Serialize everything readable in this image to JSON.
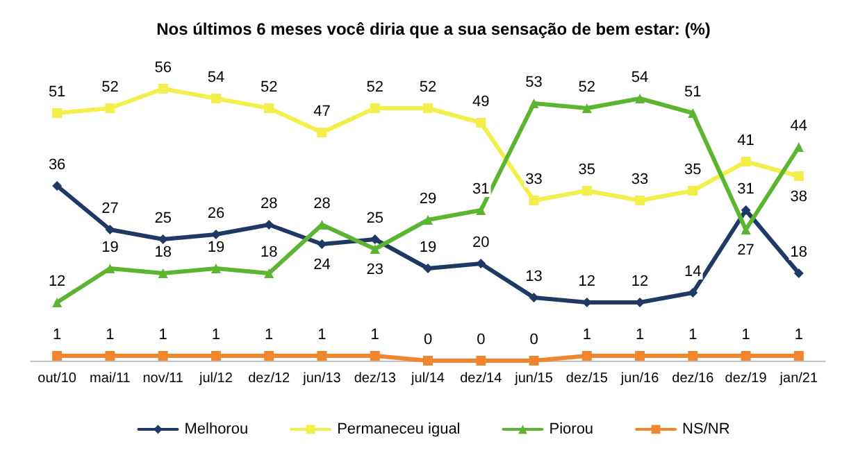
{
  "chart_data": {
    "type": "line",
    "title": "Nos últimos 6 meses você diria que a sua sensação de bem estar: (%)",
    "categories": [
      "out/10",
      "mai/11",
      "nov/11",
      "jul/12",
      "dez/12",
      "jun/13",
      "dez/13",
      "jul/14",
      "dez/14",
      "jun/15",
      "dez/15",
      "jun/16",
      "dez/16",
      "dez/19",
      "jan/21"
    ],
    "series": [
      {
        "name": "Melhorou",
        "color": "#1f3864",
        "marker": "diamond",
        "values": [
          36,
          27,
          25,
          26,
          28,
          24,
          25,
          19,
          20,
          13,
          12,
          12,
          14,
          31,
          18
        ]
      },
      {
        "name": "Permaneceu igual",
        "color": "#f2ef4b",
        "marker": "square",
        "values": [
          51,
          52,
          56,
          54,
          52,
          47,
          52,
          52,
          49,
          33,
          35,
          33,
          35,
          41,
          38
        ]
      },
      {
        "name": "Piorou",
        "color": "#5cb531",
        "marker": "triangle",
        "values": [
          12,
          19,
          18,
          19,
          18,
          28,
          23,
          29,
          31,
          53,
          52,
          54,
          51,
          27,
          44
        ]
      },
      {
        "name": "NS/NR",
        "color": "#f0862e",
        "marker": "square",
        "values": [
          1,
          1,
          1,
          1,
          1,
          1,
          1,
          0,
          0,
          0,
          1,
          1,
          1,
          1,
          1
        ]
      }
    ],
    "data_labels": true,
    "legend": "bottom",
    "grid": false,
    "tick_labels": "x"
  }
}
